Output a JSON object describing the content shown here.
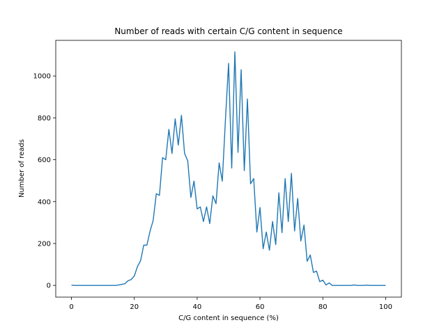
{
  "chart_data": {
    "type": "line",
    "title": "Number of reads with certain C/G content in sequence",
    "xlabel": "C/G content in sequence (%)",
    "ylabel": "Number of reads",
    "xlim": [
      -5,
      105
    ],
    "ylim": [
      -56,
      1170
    ],
    "xticks": [
      0,
      20,
      40,
      60,
      80,
      100
    ],
    "yticks": [
      0,
      200,
      400,
      600,
      800,
      1000
    ],
    "grid": false,
    "series": [
      {
        "color": "#1f77b4",
        "x": [
          0,
          1,
          2,
          3,
          4,
          5,
          6,
          7,
          8,
          9,
          10,
          11,
          12,
          13,
          14,
          15,
          16,
          17,
          18,
          19,
          20,
          21,
          22,
          23,
          24,
          25,
          26,
          27,
          28,
          29,
          30,
          31,
          32,
          33,
          34,
          35,
          36,
          37,
          38,
          39,
          40,
          41,
          42,
          43,
          44,
          45,
          46,
          47,
          48,
          49,
          50,
          51,
          52,
          53,
          54,
          55,
          56,
          57,
          58,
          59,
          60,
          61,
          62,
          63,
          64,
          65,
          66,
          67,
          68,
          69,
          70,
          71,
          72,
          73,
          74,
          75,
          76,
          77,
          78,
          79,
          80,
          81,
          82,
          83,
          84,
          85,
          86,
          87,
          88,
          89,
          90,
          91,
          92,
          93,
          94,
          95,
          96,
          97,
          98,
          99,
          100
        ],
        "values": [
          1,
          0,
          0,
          0,
          0,
          0,
          0,
          0,
          0,
          0,
          0,
          0,
          0,
          0,
          0,
          2,
          5,
          8,
          22,
          28,
          45,
          90,
          118,
          192,
          192,
          258,
          310,
          438,
          430,
          610,
          600,
          745,
          630,
          795,
          670,
          812,
          630,
          595,
          420,
          498,
          365,
          375,
          305,
          375,
          295,
          428,
          390,
          585,
          498,
          790,
          1060,
          560,
          1115,
          635,
          1030,
          548,
          890,
          485,
          510,
          255,
          372,
          175,
          255,
          168,
          305,
          195,
          442,
          252,
          510,
          305,
          535,
          260,
          415,
          212,
          288,
          115,
          145,
          62,
          68,
          18,
          25,
          2,
          12,
          0,
          0,
          0,
          0,
          0,
          0,
          0,
          2,
          0,
          0,
          0,
          1,
          0,
          0,
          0,
          0,
          0,
          0
        ]
      }
    ]
  }
}
